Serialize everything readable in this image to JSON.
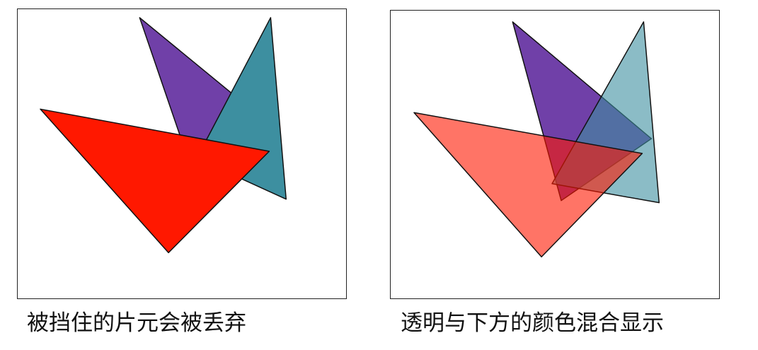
{
  "captions": {
    "left": "被挡住的片元会被丢弃",
    "right": "透明与下方的颜色混合显示"
  },
  "colors": {
    "purple": "#7040a8",
    "teal": "#3d8fa0",
    "red": "#ff1800",
    "outline": "#111111",
    "background": "#ffffff"
  },
  "blend": {
    "opaque_opacity": 1.0,
    "transparent_opacity": 0.6
  }
}
